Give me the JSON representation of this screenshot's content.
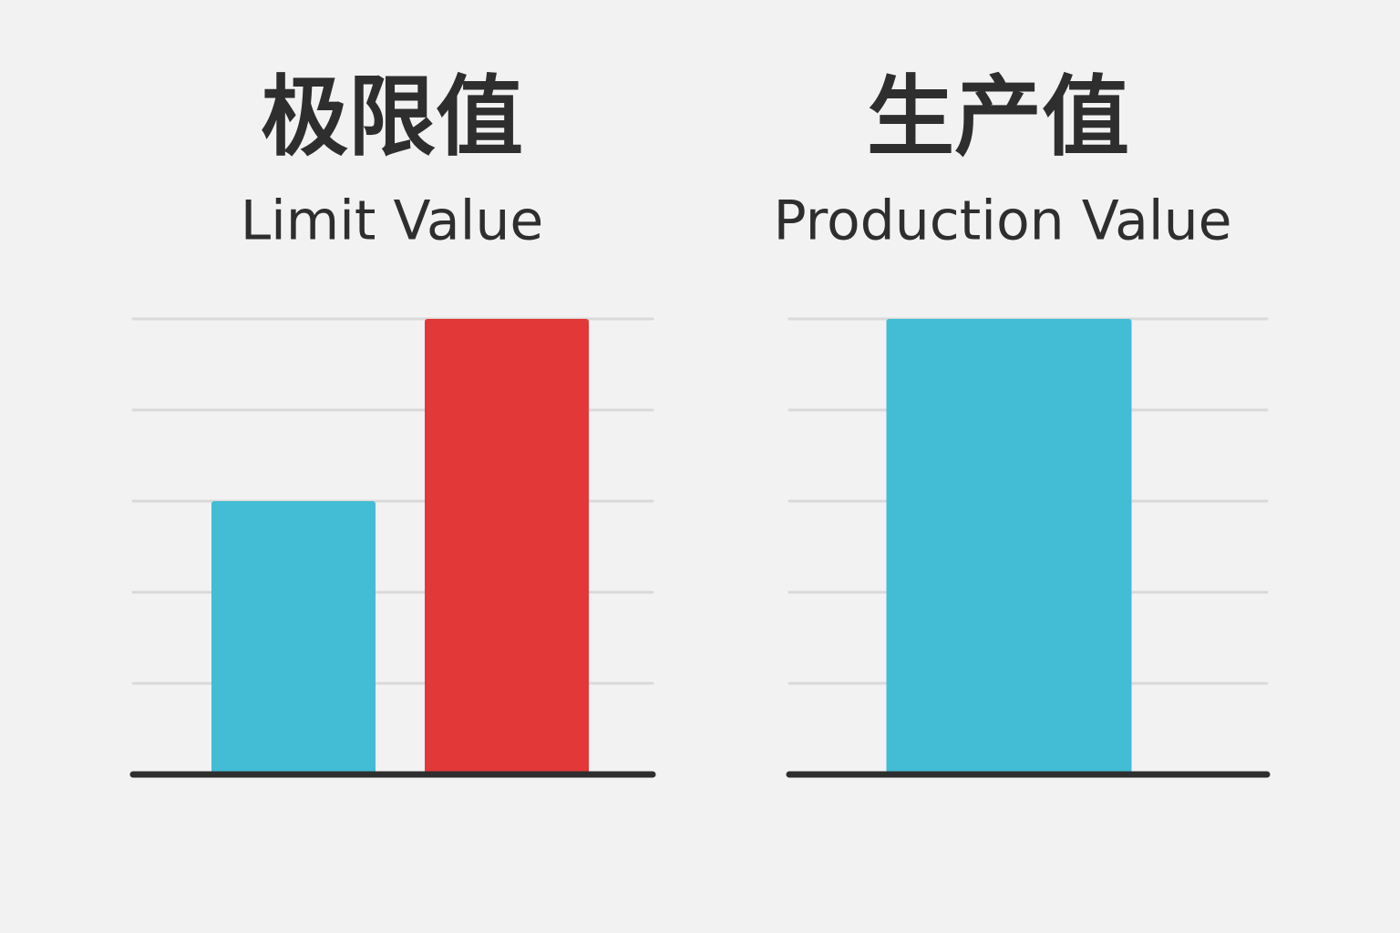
{
  "chart_data": [
    {
      "type": "bar",
      "title": "极限值",
      "subtitle": "Limit Value",
      "categories": [
        null,
        null
      ],
      "values": [
        3,
        5
      ],
      "colors": [
        "#43bcd5",
        "#e33838"
      ],
      "ylim": [
        0,
        5
      ],
      "yticks": [
        0,
        1,
        2,
        3,
        4,
        5
      ],
      "grid": true
    },
    {
      "type": "bar",
      "title": "生产值",
      "subtitle": "Production Value",
      "categories": [
        null
      ],
      "values": [
        5
      ],
      "colors": [
        "#43bcd5"
      ],
      "ylim": [
        0,
        5
      ],
      "yticks": [
        0,
        1,
        2,
        3,
        4,
        5
      ],
      "grid": true
    }
  ]
}
